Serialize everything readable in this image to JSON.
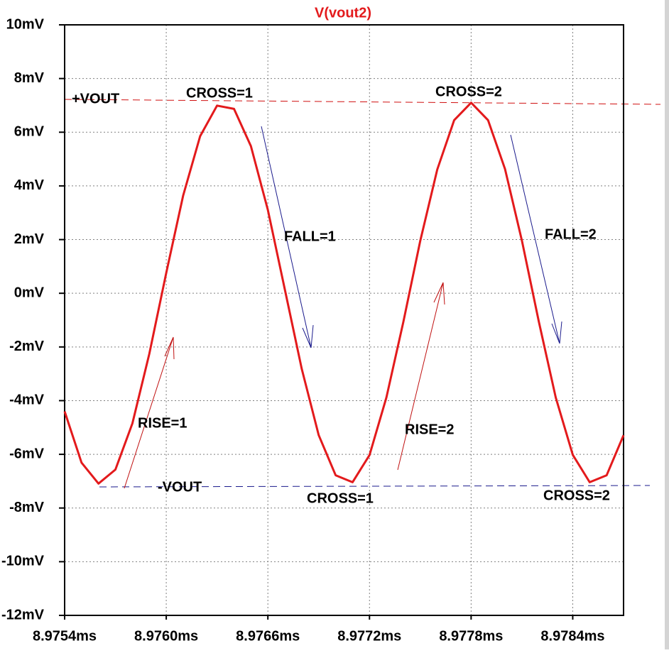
{
  "chart_data": {
    "type": "line",
    "title": "V(vout2)",
    "x": [
      8.9754,
      8.9755,
      8.9756,
      8.9757,
      8.9758,
      8.9759,
      8.976,
      8.9761,
      8.9762,
      8.9763,
      8.9764,
      8.9765,
      8.9766,
      8.9767,
      8.9768,
      8.9769,
      8.977,
      8.9771,
      8.9772,
      8.9773,
      8.9774,
      8.9775,
      8.9776,
      8.9777,
      8.9778,
      8.9779,
      8.978,
      8.9781,
      8.9782,
      8.9783,
      8.9784,
      8.9785,
      8.9786,
      8.9787
    ],
    "series": [
      {
        "name": "V(vout2)",
        "color": "#e31a1c",
        "values": [
          -4.4,
          -6.31,
          -7.09,
          -6.57,
          -4.85,
          -2.26,
          0.76,
          3.64,
          5.85,
          6.99,
          6.87,
          5.48,
          3.1,
          0.15,
          -2.82,
          -5.28,
          -6.78,
          -7.04,
          -6.03,
          -3.88,
          -1.06,
          1.96,
          4.61,
          6.45,
          7.1,
          6.45,
          4.63,
          1.96,
          -1.07,
          -3.89,
          -6.02,
          -7.04,
          -6.78,
          -5.29
        ]
      }
    ],
    "xlim": [
      8.9754,
      8.9787
    ],
    "xticks": [
      {
        "value": 8.9754,
        "label": "8.9754ms"
      },
      {
        "value": 8.976,
        "label": "8.9760ms"
      },
      {
        "value": 8.9766,
        "label": "8.9766ms"
      },
      {
        "value": 8.9772,
        "label": "8.9772ms"
      },
      {
        "value": 8.9778,
        "label": "8.9778ms"
      },
      {
        "value": 8.9784,
        "label": "8.9784ms"
      }
    ],
    "ylim": [
      -12,
      10
    ],
    "yticks": [
      {
        "value": 10,
        "label": "10mV"
      },
      {
        "value": 8,
        "label": "8mV"
      },
      {
        "value": 6,
        "label": "6mV"
      },
      {
        "value": 4,
        "label": "4mV"
      },
      {
        "value": 2,
        "label": "2mV"
      },
      {
        "value": 0,
        "label": "0mV"
      },
      {
        "value": -2,
        "label": "-2mV"
      },
      {
        "value": -4,
        "label": "-4mV"
      },
      {
        "value": -6,
        "label": "-6mV"
      },
      {
        "value": -8,
        "label": "-8mV"
      },
      {
        "value": -10,
        "label": "-10mV"
      },
      {
        "value": -12,
        "label": "-12mV"
      }
    ],
    "grid": true,
    "annotations": [
      "+VOUT",
      "CROSS=1",
      "CROSS=2",
      "FALL=1",
      "FALL=2",
      "RISE=1",
      "RISE=2",
      "-VOUT",
      "CROSS=1",
      "CROSS=2"
    ]
  }
}
